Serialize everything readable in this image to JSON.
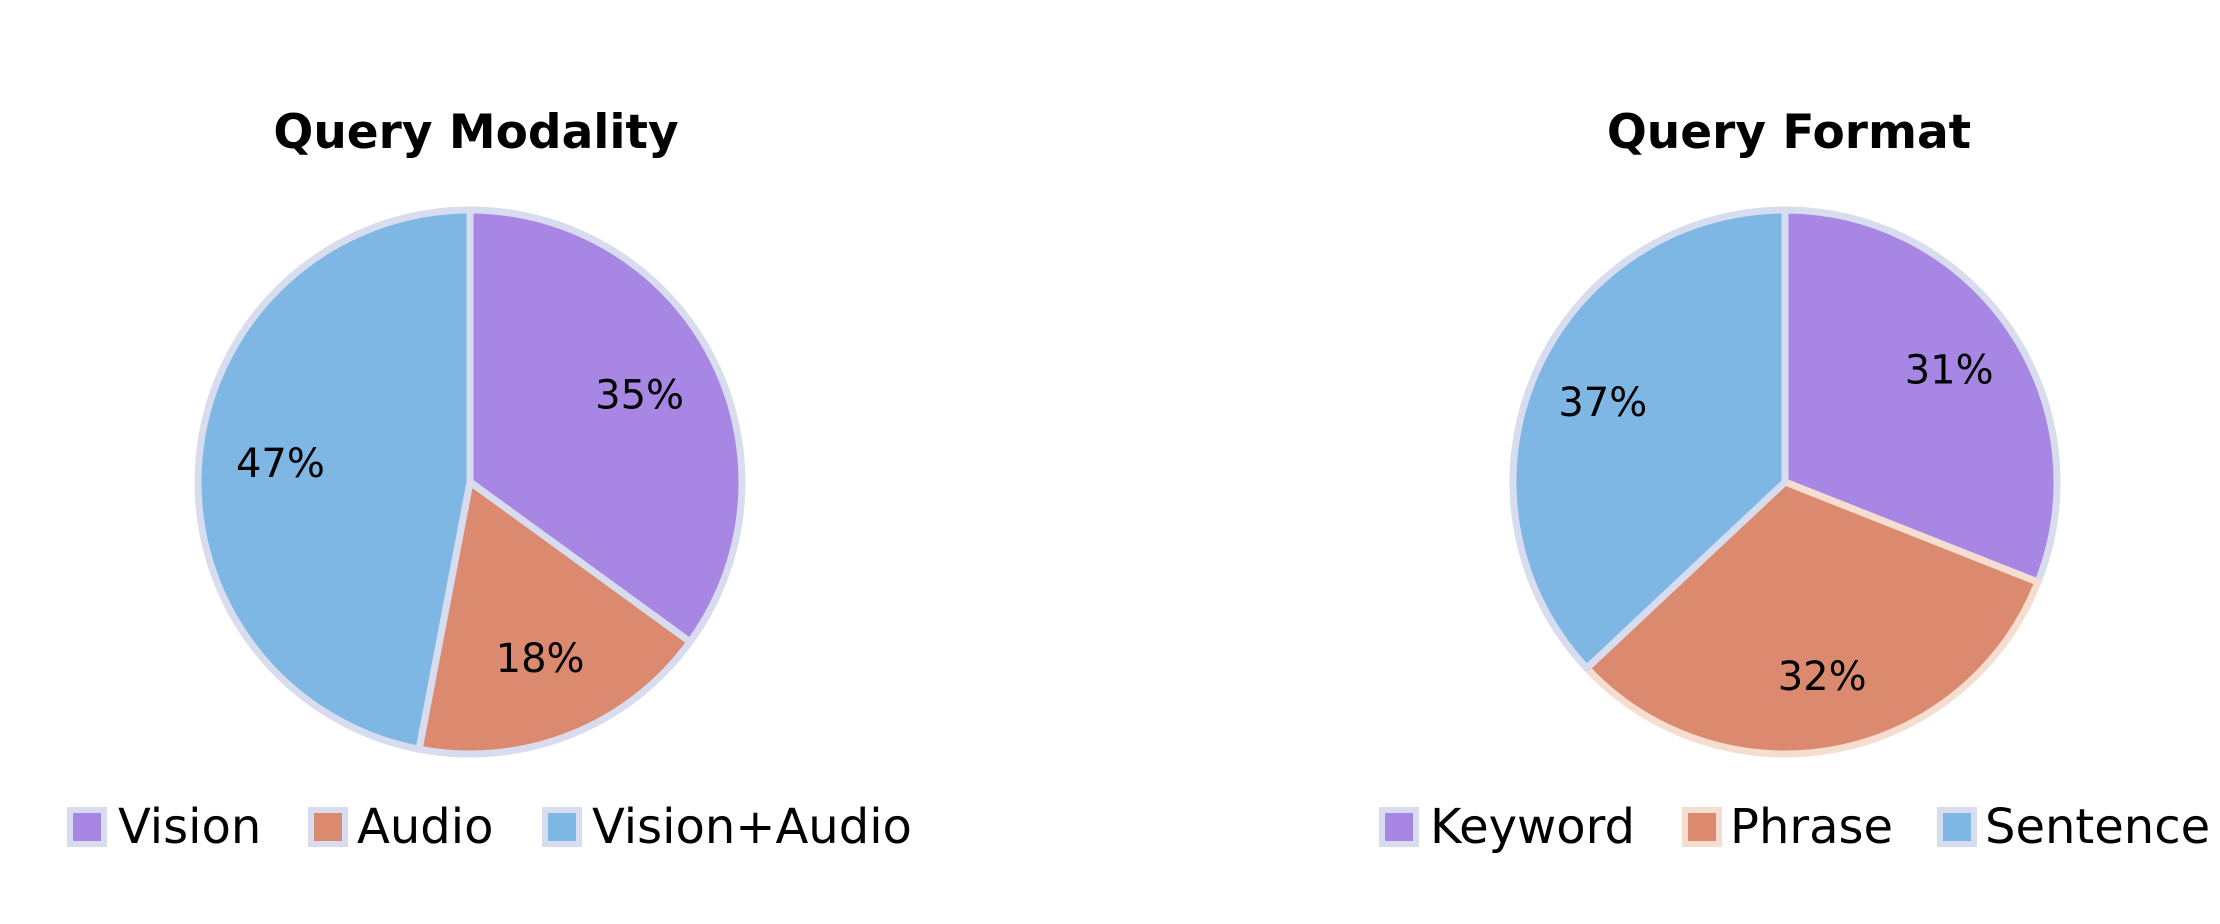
{
  "chart_data": [
    {
      "type": "pie",
      "title": "Query Modality",
      "categories": [
        "Vision",
        "Audio",
        "Vision+Audio"
      ],
      "values": [
        35,
        18,
        47
      ],
      "labels": [
        "35%",
        "18%",
        "47%"
      ],
      "colors": [
        "#A786E4",
        "#DC8A6F",
        "#7EB7E3"
      ],
      "edge_colors": [
        "#D8DCEF",
        "#D8DCEF",
        "#D8DCEF"
      ],
      "start_angle": "top",
      "direction": "clockwise",
      "legend_position": "bottom"
    },
    {
      "type": "pie",
      "title": "Query Format",
      "categories": [
        "Keyword",
        "Phrase",
        "Sentence"
      ],
      "values": [
        31,
        32,
        37
      ],
      "labels": [
        "31%",
        "32%",
        "37%"
      ],
      "colors": [
        "#A786E4",
        "#DC8A6F",
        "#7EB7E3"
      ],
      "edge_colors": [
        "#D8DCEF",
        "#F5DED0",
        "#D8DCEF"
      ],
      "start_angle": "top",
      "direction": "clockwise",
      "legend_position": "bottom"
    }
  ]
}
